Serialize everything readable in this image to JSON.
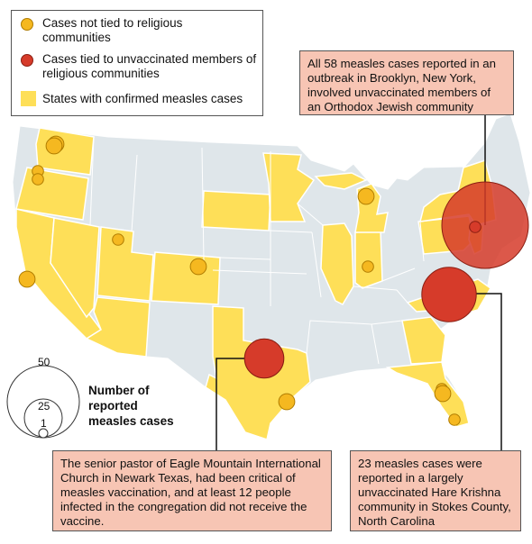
{
  "legend": {
    "not_tied": "Cases not tied to religious communities",
    "tied": "Cases tied to unvaccinated members of religious communities",
    "states": "States with confirmed measles cases"
  },
  "size_legend": {
    "title": "Number of reported measles cases",
    "values": [
      "50",
      "25",
      "1"
    ]
  },
  "callouts": {
    "brooklyn": "All 58 measles cases reported in an outbreak in Brooklyn, New York, involved unvaccinated members of an Orthodox Jewish community",
    "texas": "The senior pastor of Eagle Mountain International Church in Newark Texas, had been critical of measles vaccination, and at least 12 people infected in the congregation did not receive the vaccine.",
    "north_carolina": "23 measles cases were reported in a largely unvaccinated Hare Krishna community in Stokes County, North Carolina"
  },
  "colors": {
    "affected_state": "#fedf58",
    "unaffected_state": "#dfe6ea",
    "state_border": "#ffffff",
    "not_tied_case": "#f5b820",
    "tied_case": "#d63b2a",
    "callout_fill": "#f7c5b4"
  },
  "states_with_cases": [
    "Washington",
    "Oregon",
    "California",
    "Nevada",
    "Utah",
    "Arizona",
    "Colorado",
    "Texas",
    "South Dakota",
    "Minnesota",
    "Illinois",
    "Indiana",
    "Michigan",
    "Pennsylvania",
    "New York",
    "New Jersey",
    "North Carolina",
    "Georgia",
    "Florida"
  ],
  "case_markers": [
    {
      "type": "not_tied",
      "cases": 2
    },
    {
      "type": "not_tied",
      "cases": 2
    },
    {
      "type": "not_tied",
      "cases": 1
    },
    {
      "type": "not_tied",
      "cases": 1
    },
    {
      "type": "not_tied",
      "cases": 2
    },
    {
      "type": "not_tied",
      "cases": 1
    },
    {
      "type": "not_tied",
      "cases": 2
    },
    {
      "type": "not_tied",
      "cases": 2
    },
    {
      "type": "not_tied",
      "cases": 1
    },
    {
      "type": "not_tied",
      "cases": 2
    },
    {
      "type": "not_tied",
      "cases": 1
    },
    {
      "type": "not_tied",
      "cases": 2
    },
    {
      "type": "not_tied",
      "cases": 1
    },
    {
      "type": "tied",
      "cases": 58
    },
    {
      "type": "tied",
      "cases": 1
    },
    {
      "type": "tied",
      "cases": 23
    },
    {
      "type": "tied",
      "cases": 12
    }
  ]
}
